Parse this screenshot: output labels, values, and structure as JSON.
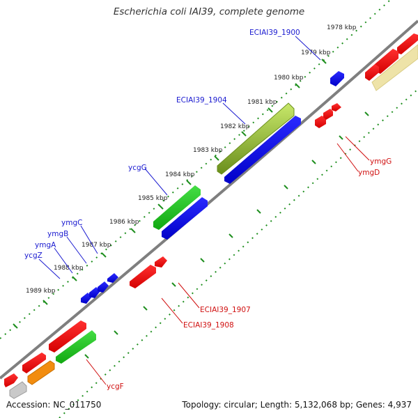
{
  "title": "Escherichia coli IAI39, complete genome",
  "footer": {
    "accession": "Accession: NC_011750",
    "topology": "Topology: circular; Length: 5,132,068 bp; Genes: 4,937"
  },
  "colors": {
    "backbone": "#7f7f7f",
    "tick": "#1f8f1f",
    "forward_label": "#1a1ad0",
    "reverse_label": "#d01010",
    "kbp_label": "#222222"
  },
  "kbp_ticks": [
    {
      "label": "1978 kbp"
    },
    {
      "label": "1979 kbp"
    },
    {
      "label": "1980 kbp"
    },
    {
      "label": "1981 kbp"
    },
    {
      "label": "1982 kbp"
    },
    {
      "label": "1983 kbp"
    },
    {
      "label": "1984 kbp"
    },
    {
      "label": "1985 kbp"
    },
    {
      "label": "1986 kbp"
    },
    {
      "label": "1987 kbp"
    },
    {
      "label": "1988 kbp"
    },
    {
      "label": "1989 kbp"
    }
  ],
  "gene_labels": [
    {
      "name": "ECIAI39_1900",
      "strand": "forward"
    },
    {
      "name": "ECIAI39_1904",
      "strand": "forward"
    },
    {
      "name": "ycgG",
      "strand": "forward"
    },
    {
      "name": "ymgC",
      "strand": "forward"
    },
    {
      "name": "ymgB",
      "strand": "forward"
    },
    {
      "name": "ymgA",
      "strand": "forward"
    },
    {
      "name": "ycgZ",
      "strand": "forward"
    },
    {
      "name": "ymgG",
      "strand": "reverse"
    },
    {
      "name": "ymgD",
      "strand": "reverse"
    },
    {
      "name": "ECIAI39_1907",
      "strand": "reverse"
    },
    {
      "name": "ECIAI39_1908",
      "strand": "reverse"
    },
    {
      "name": "ycgF",
      "strand": "reverse"
    }
  ]
}
